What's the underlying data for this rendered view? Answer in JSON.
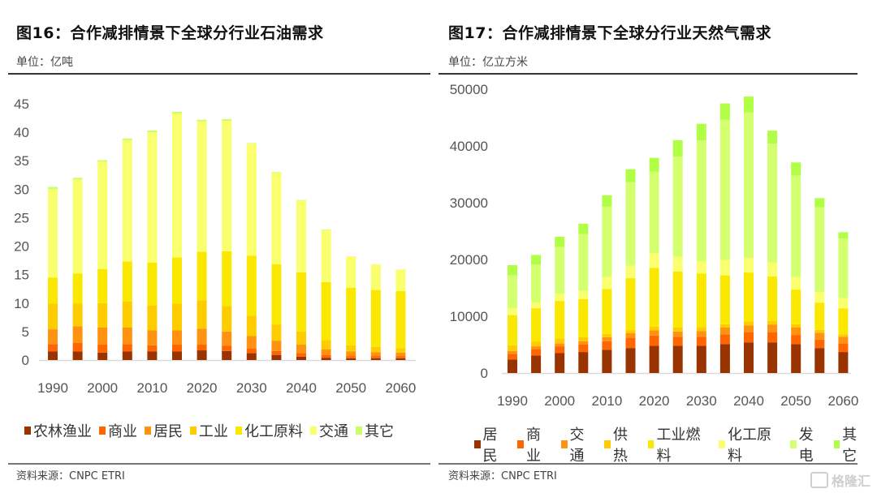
{
  "chart_data": [
    {
      "type": "bar",
      "stacked": true,
      "title": "图16：合作减排情景下全球分行业石油需求",
      "unit_label": "单位：亿吨",
      "source": "资料来源：CNPC ETRI",
      "xlabel": "",
      "ylabel": "",
      "ylim": [
        0,
        45
      ],
      "yticks": [
        0,
        5,
        10,
        15,
        20,
        25,
        30,
        35,
        40,
        45
      ],
      "grid": false,
      "legend_position": "bottom",
      "categories": [
        "1990",
        "1995",
        "2000",
        "2005",
        "2010",
        "2015",
        "2020",
        "2025",
        "2030",
        "2035",
        "2040",
        "2045",
        "2050",
        "2055",
        "2060"
      ],
      "xtick_labels": [
        "1990",
        "2000",
        "2010",
        "2020",
        "2030",
        "2040",
        "2050",
        "2060"
      ],
      "series": [
        {
          "name": "农林渔业",
          "color": "#993300",
          "values": [
            1.5,
            1.5,
            1.3,
            1.5,
            1.5,
            1.5,
            1.7,
            1.6,
            1.2,
            0.9,
            0.6,
            0.4,
            0.3,
            0.3,
            0.3
          ]
        },
        {
          "name": "商业",
          "color": "#FF6600",
          "values": [
            1.3,
            1.5,
            1.4,
            1.3,
            1.1,
            1.2,
            1.0,
            0.9,
            0.8,
            0.7,
            0.6,
            0.5,
            0.4,
            0.4,
            0.4
          ]
        },
        {
          "name": "居民",
          "color": "#FF9211",
          "values": [
            2.6,
            2.9,
            3.0,
            2.9,
            2.6,
            2.5,
            2.8,
            2.5,
            2.2,
            1.8,
            1.5,
            1.0,
            0.8,
            0.7,
            0.6
          ]
        },
        {
          "name": "工业",
          "color": "#FFCC00",
          "values": [
            4.5,
            4.0,
            4.3,
            4.6,
            4.4,
            4.7,
            5.0,
            4.5,
            3.6,
            2.8,
            2.3,
            1.6,
            1.1,
            0.9,
            0.8
          ]
        },
        {
          "name": "化工原料",
          "color": "#FAE800",
          "values": [
            4.6,
            5.3,
            6.0,
            7.0,
            7.5,
            8.1,
            8.5,
            9.6,
            10.5,
            10.6,
            10.4,
            10.2,
            10.1,
            10.0,
            10.0
          ]
        },
        {
          "name": "交通",
          "color": "#FAFF6E",
          "values": [
            15.5,
            16.5,
            18.8,
            21.3,
            22.9,
            25.3,
            22.9,
            22.9,
            19.7,
            16.1,
            12.6,
            9.1,
            5.5,
            4.5,
            3.8
          ]
        },
        {
          "name": "其它",
          "color": "#CCFF66",
          "values": [
            0.4,
            0.3,
            0.3,
            0.3,
            0.3,
            0.3,
            0.3,
            0.3,
            0.1,
            0.1,
            0.1,
            0.1,
            0.0,
            0.0,
            0.0
          ]
        }
      ]
    },
    {
      "type": "bar",
      "stacked": true,
      "title": "图17：合作减排情景下全球分行业天然气需求",
      "unit_label": "单位：亿立方米",
      "source": "资料来源：CNPC ETRI",
      "xlabel": "",
      "ylabel": "",
      "ylim": [
        0,
        50000
      ],
      "yticks": [
        0,
        10000,
        20000,
        30000,
        40000,
        50000
      ],
      "grid": false,
      "legend_position": "bottom",
      "categories": [
        "1990",
        "1995",
        "2000",
        "2005",
        "2010",
        "2015",
        "2020",
        "2025",
        "2030",
        "2035",
        "2040",
        "2045",
        "2050",
        "2055",
        "2060"
      ],
      "xtick_labels": [
        "1990",
        "2000",
        "2010",
        "2020",
        "2030",
        "2040",
        "2050",
        "2060"
      ],
      "series": [
        {
          "name": "居民",
          "color": "#993300",
          "values": [
            2400,
            3100,
            3500,
            3700,
            4100,
            4400,
            4800,
            4800,
            4800,
            5100,
            5400,
            5400,
            5100,
            4400,
            3700
          ]
        },
        {
          "name": "商业",
          "color": "#FF6600",
          "values": [
            1000,
            1100,
            1200,
            1300,
            1500,
            1800,
            1800,
            1600,
            1600,
            1700,
            1800,
            1800,
            1600,
            1500,
            1500
          ]
        },
        {
          "name": "交通",
          "color": "#FF9211",
          "values": [
            500,
            500,
            500,
            600,
            700,
            800,
            900,
            900,
            1000,
            1200,
            1200,
            1300,
            1300,
            1200,
            1200
          ]
        },
        {
          "name": "供热",
          "color": "#FFCC00",
          "values": [
            1000,
            800,
            900,
            700,
            600,
            500,
            700,
            700,
            700,
            600,
            700,
            700,
            600,
            500,
            400
          ]
        },
        {
          "name": "工业燃料",
          "color": "#FAE800",
          "values": [
            5300,
            5900,
            6600,
            6700,
            7900,
            9200,
            10300,
            9900,
            9400,
            8600,
            8600,
            7800,
            6100,
            4800,
            4600
          ]
        },
        {
          "name": "化工原料",
          "color": "#FAFF6E",
          "values": [
            1200,
            1000,
            1300,
            1500,
            2100,
            2200,
            2600,
            2600,
            2200,
            2700,
            2600,
            2500,
            2200,
            1900,
            1800
          ]
        },
        {
          "name": "发电",
          "color": "#D4FF6E",
          "values": [
            5800,
            6700,
            8200,
            10000,
            12400,
            14700,
            14400,
            17600,
            21300,
            24700,
            25600,
            20900,
            17900,
            14900,
            10500
          ]
        },
        {
          "name": "其它",
          "color": "#B0FF44",
          "values": [
            1800,
            1700,
            1800,
            1800,
            2000,
            2300,
            2400,
            2900,
            2900,
            2900,
            2800,
            2300,
            2300,
            1600,
            1100
          ]
        }
      ]
    }
  ],
  "watermark": {
    "text": "格隆汇"
  }
}
